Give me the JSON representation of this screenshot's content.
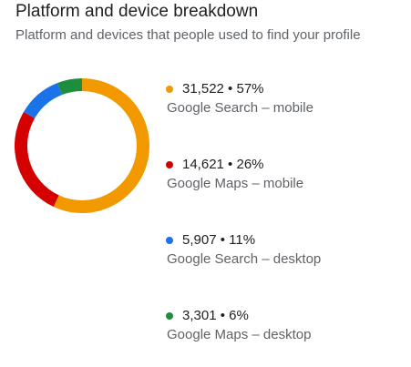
{
  "title": "Platform and device breakdown",
  "subtitle": "Platform and devices that people used to find your profile",
  "chart_data": {
    "type": "pie",
    "style": "donut",
    "legend_position": "right",
    "slices": [
      {
        "label": "Google Search – mobile",
        "value": 31522,
        "value_text": "31,522",
        "percent_text": "57%",
        "color": "#f29900"
      },
      {
        "label": "Google Maps – mobile",
        "value": 14621,
        "value_text": "14,621",
        "percent_text": "26%",
        "color": "#d50000"
      },
      {
        "label": "Google Search – desktop",
        "value": 5907,
        "value_text": "5,907",
        "percent_text": "11%",
        "color": "#1a73e8"
      },
      {
        "label": "Google Maps – desktop",
        "value": 3301,
        "value_text": "3,301",
        "percent_text": "6%",
        "color": "#1e8e3e"
      }
    ]
  }
}
